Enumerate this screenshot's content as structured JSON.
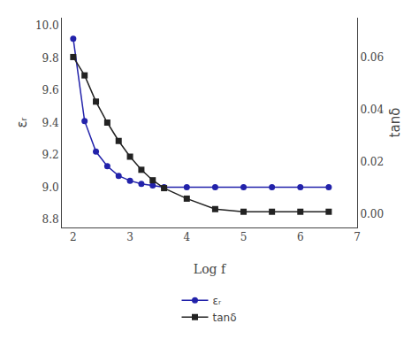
{
  "chart_data": {
    "type": "line",
    "x": [
      2.0,
      2.2,
      2.4,
      2.6,
      2.8,
      3.0,
      3.2,
      3.4,
      3.6,
      4.0,
      4.5,
      5.0,
      5.5,
      6.0,
      6.5
    ],
    "series": [
      {
        "name": "εᵣ",
        "color": "#2222aa",
        "marker": "circle",
        "line_style": "solid",
        "values": [
          9.92,
          9.41,
          9.22,
          9.13,
          9.07,
          9.04,
          9.02,
          9.01,
          9.0,
          9.0,
          9.0,
          9.0,
          9.0,
          9.0,
          9.0
        ]
      },
      {
        "name": "tanδ",
        "color": "#222222",
        "marker": "square",
        "line_style": "solid",
        "axis": "y2",
        "values": [
          0.06,
          0.053,
          0.043,
          0.035,
          0.028,
          0.022,
          0.017,
          0.013,
          0.01,
          0.006,
          0.002,
          0.001,
          0.001,
          0.001,
          0.001
        ]
      }
    ],
    "xlabel": "Log f",
    "ylabel": "εᵣ",
    "y2label": "tanδ",
    "xlim": [
      1.8,
      7.0
    ],
    "ylim": [
      8.75,
      10.05
    ],
    "y2lim": [
      -0.005,
      0.075
    ],
    "xticks": [
      2,
      3,
      4,
      5,
      6,
      7
    ],
    "yticks": [
      8.8,
      {
        "value": 9.0,
        "label": "9.0"
      },
      9.2,
      9.4,
      9.6,
      9.8,
      {
        "value": 10.0,
        "label": "10.0"
      }
    ],
    "y2ticks": [
      {
        "value": 0,
        "label": "0.00"
      },
      0.02,
      0.04,
      0.06
    ],
    "grid": false,
    "legend": "bottom"
  }
}
